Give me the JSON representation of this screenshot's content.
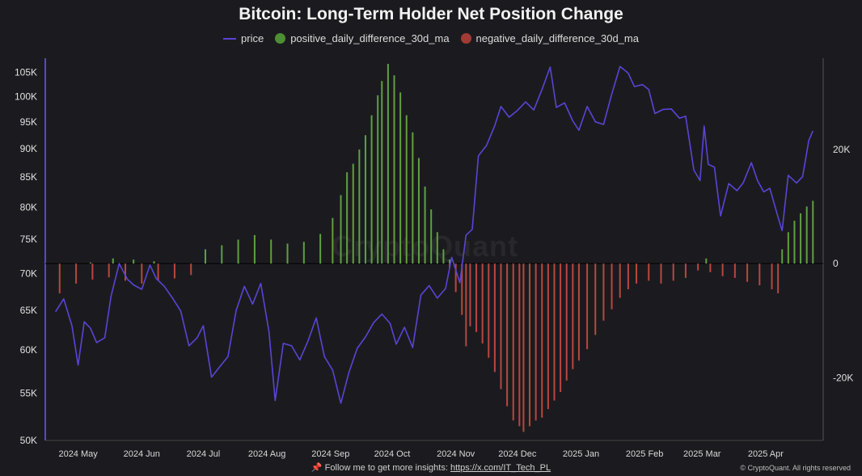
{
  "chart_data": {
    "type": "bar",
    "title": "Bitcoin: Long-Term Holder Net Position Change",
    "legend_placement": "top-center",
    "grid": false,
    "colors": {
      "price": "#5a44d6",
      "positive": "#5fa040",
      "negative": "#b8473f",
      "background": "#1b1b1f"
    },
    "x_tick_labels": [
      "2024 May",
      "2024 Jun",
      "2024 Jul",
      "2024 Aug",
      "2024 Sep",
      "2024 Oct",
      "2024 Nov",
      "2024 Dec",
      "2025 Jan",
      "2025 Feb",
      "2025 Mar",
      "2025 Apr"
    ],
    "left_axis": {
      "scale": "log",
      "ylim": [
        50000,
        108000
      ],
      "ticks": [
        50000,
        55000,
        60000,
        65000,
        70000,
        75000,
        80000,
        85000,
        90000,
        95000,
        100000,
        105000
      ],
      "tick_labels": [
        "50K",
        "55K",
        "60K",
        "65K",
        "70K",
        "75K",
        "80K",
        "85K",
        "90K",
        "95K",
        "100K",
        "105K"
      ]
    },
    "right_axis": {
      "ylim": [
        -31000,
        36000
      ],
      "ticks": [
        -20000,
        0,
        20000
      ],
      "tick_labels": [
        "-20K",
        "0",
        "20K"
      ]
    },
    "series": [
      {
        "name": "price",
        "kind": "line",
        "axis": "left",
        "points": [
          [
            "2024-04-20",
            64800
          ],
          [
            "2024-04-24",
            66500
          ],
          [
            "2024-04-28",
            63000
          ],
          [
            "2024-05-01",
            58200
          ],
          [
            "2024-05-04",
            63500
          ],
          [
            "2024-05-07",
            62700
          ],
          [
            "2024-05-10",
            60900
          ],
          [
            "2024-05-14",
            61500
          ],
          [
            "2024-05-17",
            66800
          ],
          [
            "2024-05-21",
            71400
          ],
          [
            "2024-05-25",
            69200
          ],
          [
            "2024-05-28",
            68400
          ],
          [
            "2024-06-01",
            67800
          ],
          [
            "2024-06-05",
            71200
          ],
          [
            "2024-06-08",
            69300
          ],
          [
            "2024-06-12",
            68200
          ],
          [
            "2024-06-16",
            66600
          ],
          [
            "2024-06-20",
            64900
          ],
          [
            "2024-06-24",
            60500
          ],
          [
            "2024-06-28",
            61500
          ],
          [
            "2024-07-01",
            63000
          ],
          [
            "2024-07-05",
            56800
          ],
          [
            "2024-07-09",
            58000
          ],
          [
            "2024-07-13",
            59200
          ],
          [
            "2024-07-17",
            65000
          ],
          [
            "2024-07-21",
            68200
          ],
          [
            "2024-07-25",
            65800
          ],
          [
            "2024-07-29",
            68600
          ],
          [
            "2024-08-02",
            62200
          ],
          [
            "2024-08-05",
            54200
          ],
          [
            "2024-08-09",
            60800
          ],
          [
            "2024-08-13",
            60500
          ],
          [
            "2024-08-17",
            58800
          ],
          [
            "2024-08-21",
            61100
          ],
          [
            "2024-08-25",
            64000
          ],
          [
            "2024-08-29",
            59200
          ],
          [
            "2024-09-02",
            57600
          ],
          [
            "2024-09-06",
            53900
          ],
          [
            "2024-09-10",
            57400
          ],
          [
            "2024-09-14",
            60200
          ],
          [
            "2024-09-18",
            61600
          ],
          [
            "2024-09-22",
            63400
          ],
          [
            "2024-09-26",
            64500
          ],
          [
            "2024-09-30",
            63300
          ],
          [
            "2024-10-03",
            60700
          ],
          [
            "2024-10-07",
            62800
          ],
          [
            "2024-10-11",
            60300
          ],
          [
            "2024-10-15",
            67000
          ],
          [
            "2024-10-19",
            68300
          ],
          [
            "2024-10-23",
            66600
          ],
          [
            "2024-10-27",
            67900
          ],
          [
            "2024-10-30",
            72300
          ],
          [
            "2024-11-03",
            68700
          ],
          [
            "2024-11-06",
            75600
          ],
          [
            "2024-11-09",
            76500
          ],
          [
            "2024-11-12",
            88700
          ],
          [
            "2024-11-16",
            90600
          ],
          [
            "2024-11-20",
            94300
          ],
          [
            "2024-11-23",
            98000
          ],
          [
            "2024-11-27",
            95900
          ],
          [
            "2024-12-01",
            97200
          ],
          [
            "2024-12-05",
            98900
          ],
          [
            "2024-12-09",
            97300
          ],
          [
            "2024-12-13",
            101400
          ],
          [
            "2024-12-17",
            106100
          ],
          [
            "2024-12-20",
            97800
          ],
          [
            "2024-12-24",
            98700
          ],
          [
            "2024-12-28",
            95200
          ],
          [
            "2024-12-31",
            93400
          ],
          [
            "2025-01-04",
            98000
          ],
          [
            "2025-01-08",
            95000
          ],
          [
            "2025-01-12",
            94500
          ],
          [
            "2025-01-16",
            100500
          ],
          [
            "2025-01-20",
            106200
          ],
          [
            "2025-01-24",
            104800
          ],
          [
            "2025-01-27",
            102000
          ],
          [
            "2025-01-31",
            102400
          ],
          [
            "2025-02-03",
            101400
          ],
          [
            "2025-02-06",
            96600
          ],
          [
            "2025-02-10",
            97400
          ],
          [
            "2025-02-14",
            97500
          ],
          [
            "2025-02-18",
            95700
          ],
          [
            "2025-02-21",
            96100
          ],
          [
            "2025-02-25",
            86200
          ],
          [
            "2025-02-28",
            84400
          ],
          [
            "2025-03-02",
            94200
          ],
          [
            "2025-03-04",
            87200
          ],
          [
            "2025-03-07",
            86700
          ],
          [
            "2025-03-10",
            78600
          ],
          [
            "2025-03-14",
            83900
          ],
          [
            "2025-03-18",
            82700
          ],
          [
            "2025-03-21",
            84000
          ],
          [
            "2025-03-25",
            87500
          ],
          [
            "2025-03-28",
            84400
          ],
          [
            "2025-03-31",
            82500
          ],
          [
            "2025-04-03",
            83100
          ],
          [
            "2025-04-07",
            78400
          ],
          [
            "2025-04-09",
            76300
          ],
          [
            "2025-04-12",
            85300
          ],
          [
            "2025-04-16",
            84000
          ],
          [
            "2025-04-19",
            85100
          ],
          [
            "2025-04-22",
            91500
          ],
          [
            "2025-04-24",
            93300
          ]
        ]
      },
      {
        "name": "positive_daily_difference_30d_ma",
        "kind": "bar",
        "axis": "right",
        "points": [
          [
            "2024-05-07",
            200
          ],
          [
            "2024-05-18",
            900
          ],
          [
            "2024-05-28",
            700
          ],
          [
            "2024-06-07",
            400
          ],
          [
            "2024-07-02",
            2500
          ],
          [
            "2024-07-10",
            3200
          ],
          [
            "2024-07-18",
            4200
          ],
          [
            "2024-07-26",
            5000
          ],
          [
            "2024-08-03",
            4200
          ],
          [
            "2024-08-11",
            3500
          ],
          [
            "2024-08-19",
            3800
          ],
          [
            "2024-08-27",
            5200
          ],
          [
            "2024-09-02",
            8000
          ],
          [
            "2024-09-06",
            12000
          ],
          [
            "2024-09-09",
            16000
          ],
          [
            "2024-09-12",
            17500
          ],
          [
            "2024-09-15",
            20000
          ],
          [
            "2024-09-18",
            22500
          ],
          [
            "2024-09-21",
            26000
          ],
          [
            "2024-09-24",
            29500
          ],
          [
            "2024-09-26",
            32000
          ],
          [
            "2024-09-29",
            35000
          ],
          [
            "2024-10-02",
            33000
          ],
          [
            "2024-10-05",
            30000
          ],
          [
            "2024-10-08",
            26000
          ],
          [
            "2024-10-11",
            23000
          ],
          [
            "2024-10-14",
            18500
          ],
          [
            "2024-10-17",
            13500
          ],
          [
            "2024-10-20",
            9500
          ],
          [
            "2024-10-23",
            5500
          ],
          [
            "2024-10-26",
            2500
          ],
          [
            "2024-10-29",
            700
          ],
          [
            "2025-03-03",
            900
          ],
          [
            "2025-04-09",
            2500
          ],
          [
            "2025-04-12",
            5500
          ],
          [
            "2025-04-15",
            7500
          ],
          [
            "2025-04-18",
            8800
          ],
          [
            "2025-04-21",
            10000
          ],
          [
            "2025-04-24",
            11000
          ]
        ]
      },
      {
        "name": "negative_daily_difference_30d_ma",
        "kind": "bar",
        "axis": "right",
        "points": [
          [
            "2024-04-22",
            -5200
          ],
          [
            "2024-04-30",
            -3500
          ],
          [
            "2024-05-08",
            -2800
          ],
          [
            "2024-05-16",
            -2400
          ],
          [
            "2024-05-24",
            -3000
          ],
          [
            "2024-06-01",
            -3500
          ],
          [
            "2024-06-09",
            -3000
          ],
          [
            "2024-06-17",
            -2600
          ],
          [
            "2024-06-25",
            -2000
          ],
          [
            "2024-10-29",
            -800
          ],
          [
            "2024-11-01",
            -5000
          ],
          [
            "2024-11-04",
            -9000
          ],
          [
            "2024-11-06",
            -14500
          ],
          [
            "2024-11-08",
            -11000
          ],
          [
            "2024-11-11",
            -12000
          ],
          [
            "2024-11-14",
            -14000
          ],
          [
            "2024-11-17",
            -16500
          ],
          [
            "2024-11-20",
            -19000
          ],
          [
            "2024-11-23",
            -22000
          ],
          [
            "2024-11-26",
            -25000
          ],
          [
            "2024-11-29",
            -27500
          ],
          [
            "2024-12-02",
            -28500
          ],
          [
            "2024-12-04",
            -29500
          ],
          [
            "2024-12-07",
            -28500
          ],
          [
            "2024-12-10",
            -27500
          ],
          [
            "2024-12-13",
            -27000
          ],
          [
            "2024-12-16",
            -25500
          ],
          [
            "2024-12-19",
            -24000
          ],
          [
            "2024-12-22",
            -22500
          ],
          [
            "2024-12-25",
            -20500
          ],
          [
            "2024-12-28",
            -18500
          ],
          [
            "2024-12-31",
            -17000
          ],
          [
            "2025-01-04",
            -15000
          ],
          [
            "2025-01-08",
            -12500
          ],
          [
            "2025-01-12",
            -10000
          ],
          [
            "2025-01-16",
            -8000
          ],
          [
            "2025-01-20",
            -6000
          ],
          [
            "2025-01-24",
            -4500
          ],
          [
            "2025-01-28",
            -3500
          ],
          [
            "2025-02-03",
            -3000
          ],
          [
            "2025-02-09",
            -3500
          ],
          [
            "2025-02-15",
            -3000
          ],
          [
            "2025-02-21",
            -2500
          ],
          [
            "2025-02-27",
            -1200
          ],
          [
            "2025-03-05",
            -1500
          ],
          [
            "2025-03-11",
            -2200
          ],
          [
            "2025-03-17",
            -2500
          ],
          [
            "2025-03-23",
            -3200
          ],
          [
            "2025-03-29",
            -3800
          ],
          [
            "2025-04-04",
            -4500
          ],
          [
            "2025-04-07",
            -5200
          ]
        ]
      }
    ],
    "footer_text": "📌 Follow me to get more insights: ",
    "footer_link": "https://x.com/IT_Tech_PL",
    "copyright": "© CryptoQuant. All rights reserved",
    "watermark": "CryptoQuant"
  }
}
